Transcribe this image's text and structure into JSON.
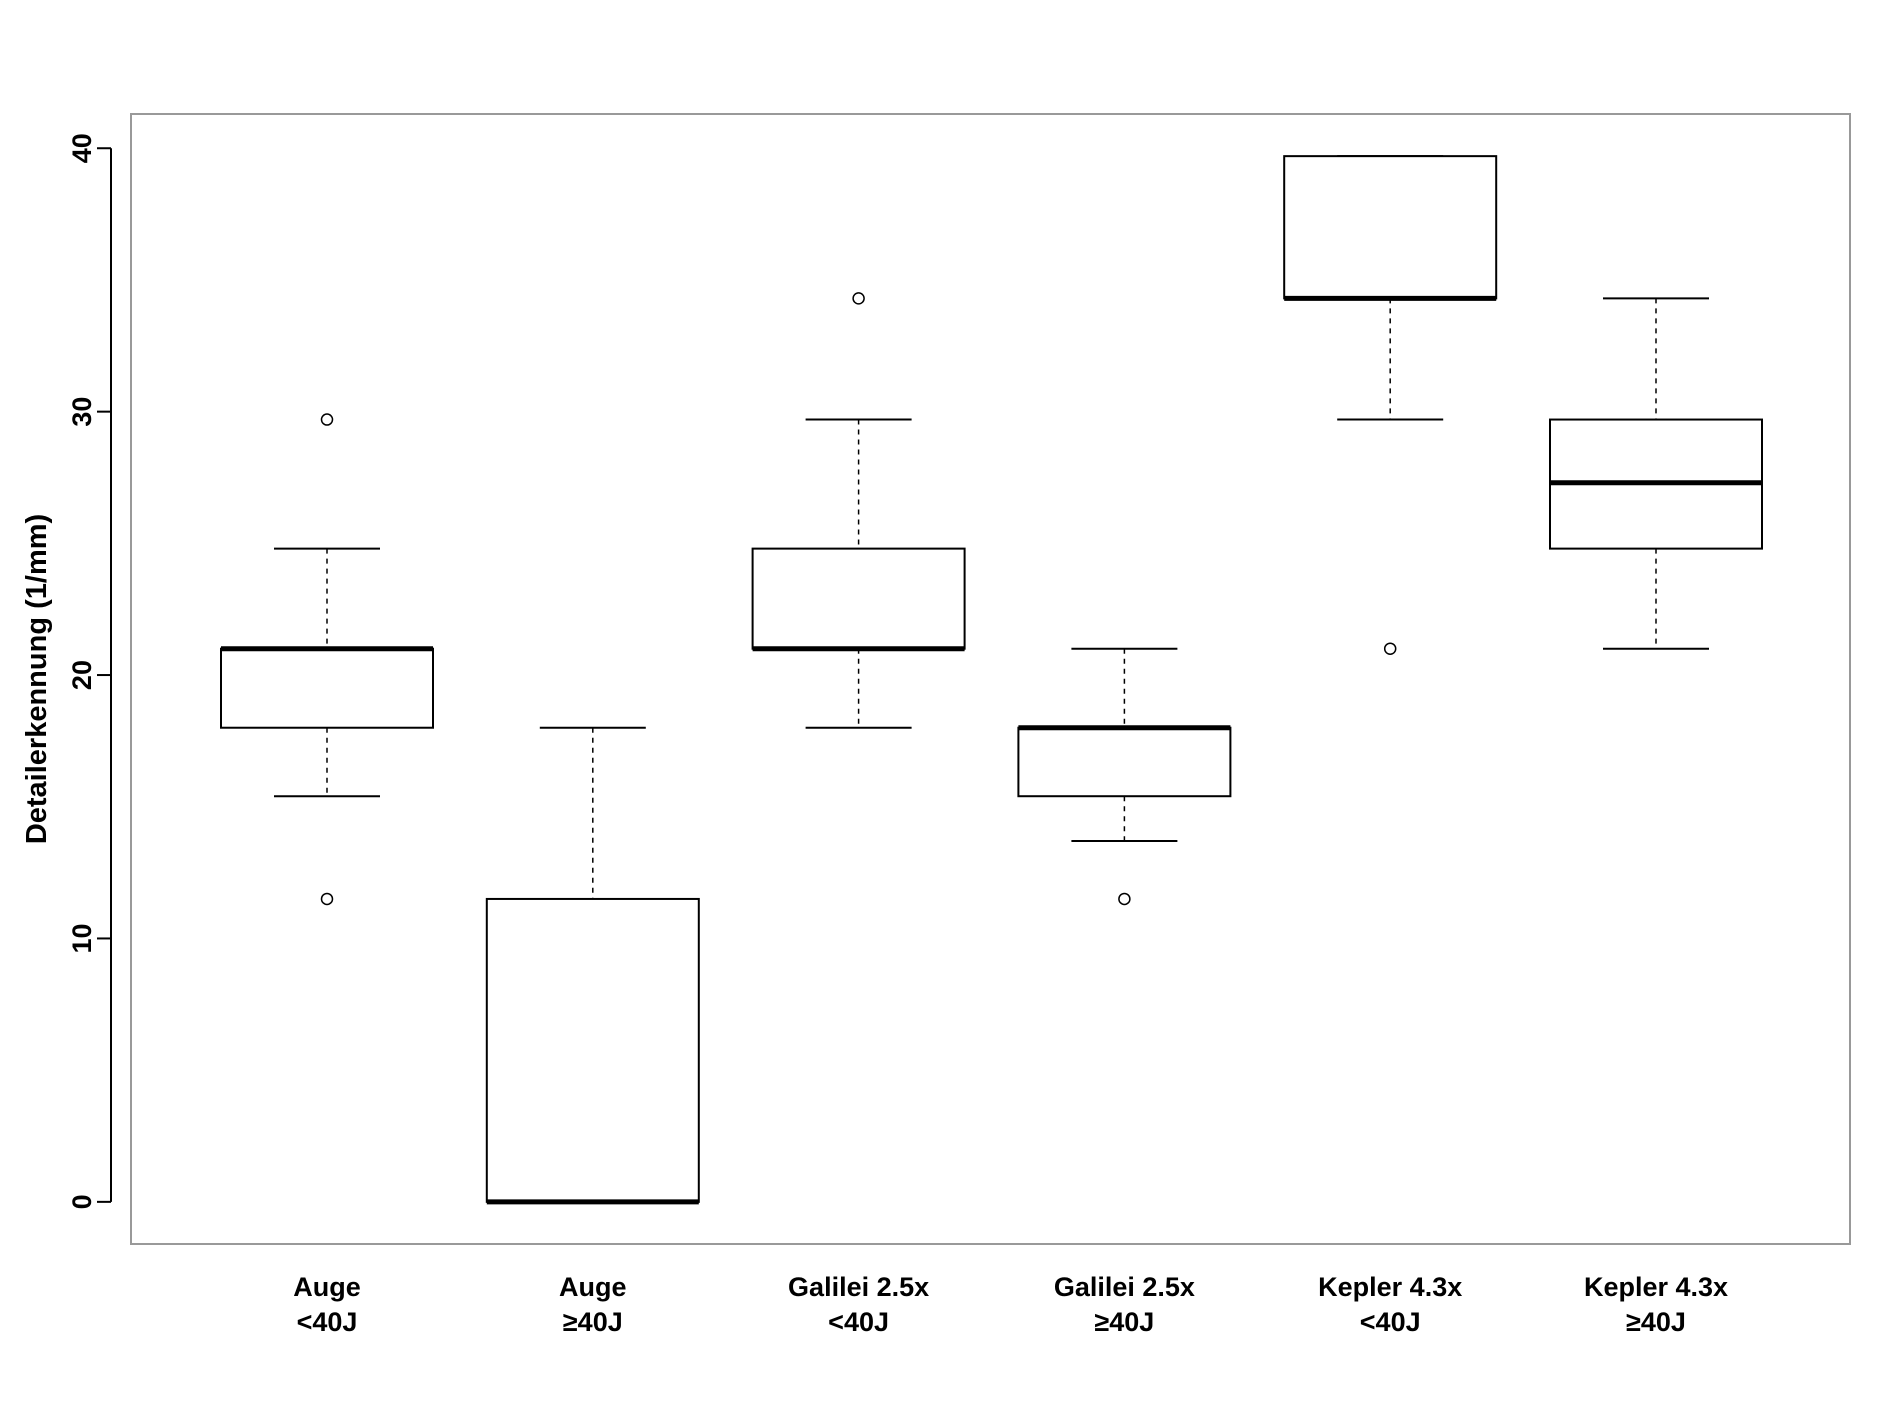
{
  "chart_data": {
    "type": "boxplot",
    "title": "",
    "xlabel": "",
    "ylabel": "Detailerkennung (1/mm)",
    "ylim": [
      -1.6,
      41.3
    ],
    "y_ticks": [
      "0",
      "10",
      "20",
      "30",
      "40"
    ],
    "grid": false,
    "legend": "none",
    "categories": [
      {
        "line1": "Auge",
        "line2": "<40J"
      },
      {
        "line1": "Auge",
        "line2": "≥40J"
      },
      {
        "line1": "Galilei 2.5x",
        "line2": "<40J"
      },
      {
        "line1": "Galilei 2.5x",
        "line2": "≥40J"
      },
      {
        "line1": "Kepler 4.3x",
        "line2": "<40J"
      },
      {
        "line1": "Kepler 4.3x",
        "line2": "≥40J"
      }
    ],
    "boxes": [
      {
        "whisker_low": 15.4,
        "q1": 18.0,
        "median": 21.0,
        "q3": 21.0,
        "whisker_high": 24.8,
        "outliers": [
          11.5,
          29.7
        ]
      },
      {
        "whisker_low": 0.0,
        "q1": 0.0,
        "median": 0.0,
        "q3": 11.5,
        "whisker_high": 18.0,
        "outliers": []
      },
      {
        "whisker_low": 18.0,
        "q1": 21.0,
        "median": 21.0,
        "q3": 24.8,
        "whisker_high": 29.7,
        "outliers": [
          34.3
        ]
      },
      {
        "whisker_low": 13.7,
        "q1": 15.4,
        "median": 18.0,
        "q3": 18.0,
        "whisker_high": 21.0,
        "outliers": [
          11.5
        ]
      },
      {
        "whisker_low": 29.7,
        "q1": 34.3,
        "median": 34.3,
        "q3": 39.7,
        "whisker_high": 39.7,
        "outliers": [
          21.0
        ]
      },
      {
        "whisker_low": 21.0,
        "q1": 24.8,
        "median": 27.3,
        "q3": 29.7,
        "whisker_high": 34.3,
        "outliers": []
      }
    ],
    "colors": {
      "stroke": "#000000",
      "frame": "#999999",
      "box_fill": "#ffffff"
    }
  }
}
